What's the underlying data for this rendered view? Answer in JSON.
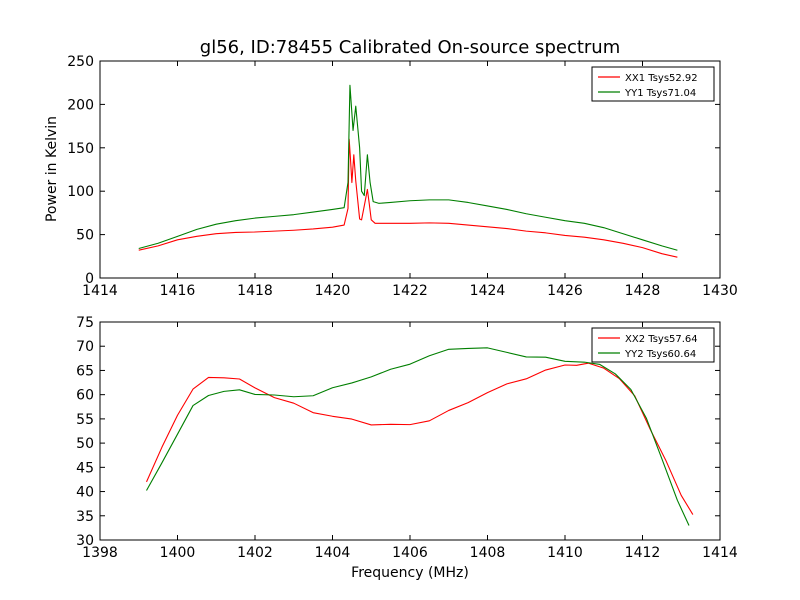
{
  "colors": {
    "red": "#ff0000",
    "green": "#007f00"
  },
  "figure": {
    "title": "gl56, ID:78455 Calibrated On-source spectrum",
    "xlabel": "Frequency (MHz)",
    "ylabel": "Power in Kelvin"
  },
  "chart_data": [
    {
      "type": "line",
      "title": "gl56, ID:78455 Calibrated On-source spectrum",
      "xlabel": "",
      "ylabel": "Power in Kelvin",
      "xlim": [
        1414,
        1430
      ],
      "ylim": [
        0,
        250
      ],
      "xticks": [
        "1414",
        "1416",
        "1418",
        "1420",
        "1422",
        "1424",
        "1426",
        "1428",
        "1430"
      ],
      "yticks": [
        "0",
        "50",
        "100",
        "150",
        "200",
        "250"
      ],
      "legend_position": "top-right",
      "grid": false,
      "series": [
        {
          "name": "XX1 Tsys52.92",
          "color": "#ff0000",
          "points": [
            [
              1415.0,
              32
            ],
            [
              1415.5,
              37
            ],
            [
              1416.0,
              44
            ],
            [
              1416.5,
              48
            ],
            [
              1417.0,
              51
            ],
            [
              1417.5,
              52.5
            ],
            [
              1418.0,
              53
            ],
            [
              1418.5,
              54
            ],
            [
              1419.0,
              55
            ],
            [
              1419.5,
              56.5
            ],
            [
              1420.0,
              58.5
            ],
            [
              1420.3,
              61
            ],
            [
              1420.4,
              80
            ],
            [
              1420.43,
              160
            ],
            [
              1420.46,
              140
            ],
            [
              1420.5,
              110
            ],
            [
              1420.55,
              142
            ],
            [
              1420.6,
              112
            ],
            [
              1420.7,
              68
            ],
            [
              1420.75,
              67
            ],
            [
              1420.85,
              90
            ],
            [
              1420.9,
              102
            ],
            [
              1420.95,
              85
            ],
            [
              1421.0,
              67
            ],
            [
              1421.1,
              63
            ],
            [
              1421.5,
              63
            ],
            [
              1422.0,
              63
            ],
            [
              1422.5,
              63.5
            ],
            [
              1423.0,
              63
            ],
            [
              1423.5,
              61
            ],
            [
              1424.0,
              59
            ],
            [
              1424.5,
              57
            ],
            [
              1425.0,
              54
            ],
            [
              1425.5,
              52
            ],
            [
              1426.0,
              49
            ],
            [
              1426.5,
              47
            ],
            [
              1427.0,
              44
            ],
            [
              1427.5,
              40
            ],
            [
              1428.0,
              35
            ],
            [
              1428.5,
              28
            ],
            [
              1428.9,
              24
            ]
          ]
        },
        {
          "name": "YY1 Tsys71.04",
          "color": "#007f00",
          "points": [
            [
              1415.0,
              34
            ],
            [
              1415.5,
              40
            ],
            [
              1416.0,
              48
            ],
            [
              1416.5,
              56
            ],
            [
              1417.0,
              62
            ],
            [
              1417.5,
              66
            ],
            [
              1418.0,
              69
            ],
            [
              1418.5,
              71
            ],
            [
              1419.0,
              73
            ],
            [
              1419.5,
              76
            ],
            [
              1420.0,
              79
            ],
            [
              1420.3,
              81
            ],
            [
              1420.4,
              110
            ],
            [
              1420.45,
              222
            ],
            [
              1420.5,
              190
            ],
            [
              1420.53,
              170
            ],
            [
              1420.6,
              198
            ],
            [
              1420.7,
              150
            ],
            [
              1420.75,
              100
            ],
            [
              1420.82,
              95
            ],
            [
              1420.9,
              142
            ],
            [
              1420.97,
              110
            ],
            [
              1421.05,
              88
            ],
            [
              1421.2,
              86
            ],
            [
              1421.5,
              87
            ],
            [
              1422.0,
              89
            ],
            [
              1422.5,
              90
            ],
            [
              1423.0,
              90
            ],
            [
              1423.5,
              87
            ],
            [
              1424.0,
              83
            ],
            [
              1424.5,
              79
            ],
            [
              1425.0,
              74
            ],
            [
              1425.5,
              70
            ],
            [
              1426.0,
              66
            ],
            [
              1426.5,
              63
            ],
            [
              1427.0,
              58
            ],
            [
              1427.5,
              51
            ],
            [
              1428.0,
              44
            ],
            [
              1428.5,
              37
            ],
            [
              1428.9,
              32
            ]
          ]
        }
      ]
    },
    {
      "type": "line",
      "title": "",
      "xlabel": "Frequency (MHz)",
      "ylabel": "",
      "xlim": [
        1398,
        1414
      ],
      "ylim": [
        30,
        75
      ],
      "xticks": [
        "1398",
        "1400",
        "1402",
        "1404",
        "1406",
        "1408",
        "1410",
        "1412",
        "1414"
      ],
      "yticks": [
        "30",
        "35",
        "40",
        "45",
        "50",
        "55",
        "60",
        "65",
        "70",
        "75"
      ],
      "legend_position": "top-right",
      "grid": false,
      "series": [
        {
          "name": "XX2 Tsys57.64",
          "color": "#ff0000",
          "points": [
            [
              1399.2,
              42
            ],
            [
              1399.6,
              49
            ],
            [
              1400.0,
              56
            ],
            [
              1400.4,
              61
            ],
            [
              1400.8,
              63.5
            ],
            [
              1401.2,
              63.7
            ],
            [
              1401.6,
              63
            ],
            [
              1402.0,
              61.5
            ],
            [
              1402.5,
              59.5
            ],
            [
              1403.0,
              58
            ],
            [
              1403.5,
              56.5
            ],
            [
              1404.0,
              55.5
            ],
            [
              1404.5,
              54.8
            ],
            [
              1405.0,
              54
            ],
            [
              1405.5,
              53.7
            ],
            [
              1406.0,
              53.8
            ],
            [
              1406.5,
              54.8
            ],
            [
              1407.0,
              56.5
            ],
            [
              1407.5,
              58.5
            ],
            [
              1408.0,
              60.5
            ],
            [
              1408.5,
              62
            ],
            [
              1409.0,
              63.5
            ],
            [
              1409.5,
              65
            ],
            [
              1410.0,
              66
            ],
            [
              1410.3,
              66.3
            ],
            [
              1410.6,
              66.3
            ],
            [
              1411.0,
              65.5
            ],
            [
              1411.4,
              63.5
            ],
            [
              1411.8,
              59.5
            ],
            [
              1412.2,
              53
            ],
            [
              1412.6,
              46.5
            ],
            [
              1413.0,
              39
            ],
            [
              1413.3,
              35.5
            ]
          ]
        },
        {
          "name": "YY2 Tsys60.64",
          "color": "#007f00",
          "points": [
            [
              1399.2,
              40
            ],
            [
              1399.6,
              46
            ],
            [
              1400.0,
              52
            ],
            [
              1400.4,
              57.5
            ],
            [
              1400.8,
              60
            ],
            [
              1401.2,
              60.7
            ],
            [
              1401.6,
              60.8
            ],
            [
              1402.0,
              60.3
            ],
            [
              1402.5,
              59.8
            ],
            [
              1403.0,
              59.5
            ],
            [
              1403.5,
              60
            ],
            [
              1404.0,
              61.2
            ],
            [
              1404.5,
              62.5
            ],
            [
              1405.0,
              63.8
            ],
            [
              1405.5,
              65
            ],
            [
              1406.0,
              66.5
            ],
            [
              1406.5,
              68
            ],
            [
              1407.0,
              69.2
            ],
            [
              1407.5,
              69.8
            ],
            [
              1408.0,
              69.5
            ],
            [
              1408.5,
              68.7
            ],
            [
              1409.0,
              68
            ],
            [
              1409.5,
              67.5
            ],
            [
              1410.0,
              67
            ],
            [
              1410.5,
              66.8
            ],
            [
              1410.9,
              66
            ],
            [
              1411.3,
              64.5
            ],
            [
              1411.7,
              61
            ],
            [
              1412.1,
              55
            ],
            [
              1412.5,
              47
            ],
            [
              1412.9,
              38
            ],
            [
              1413.2,
              33
            ]
          ]
        }
      ]
    }
  ]
}
